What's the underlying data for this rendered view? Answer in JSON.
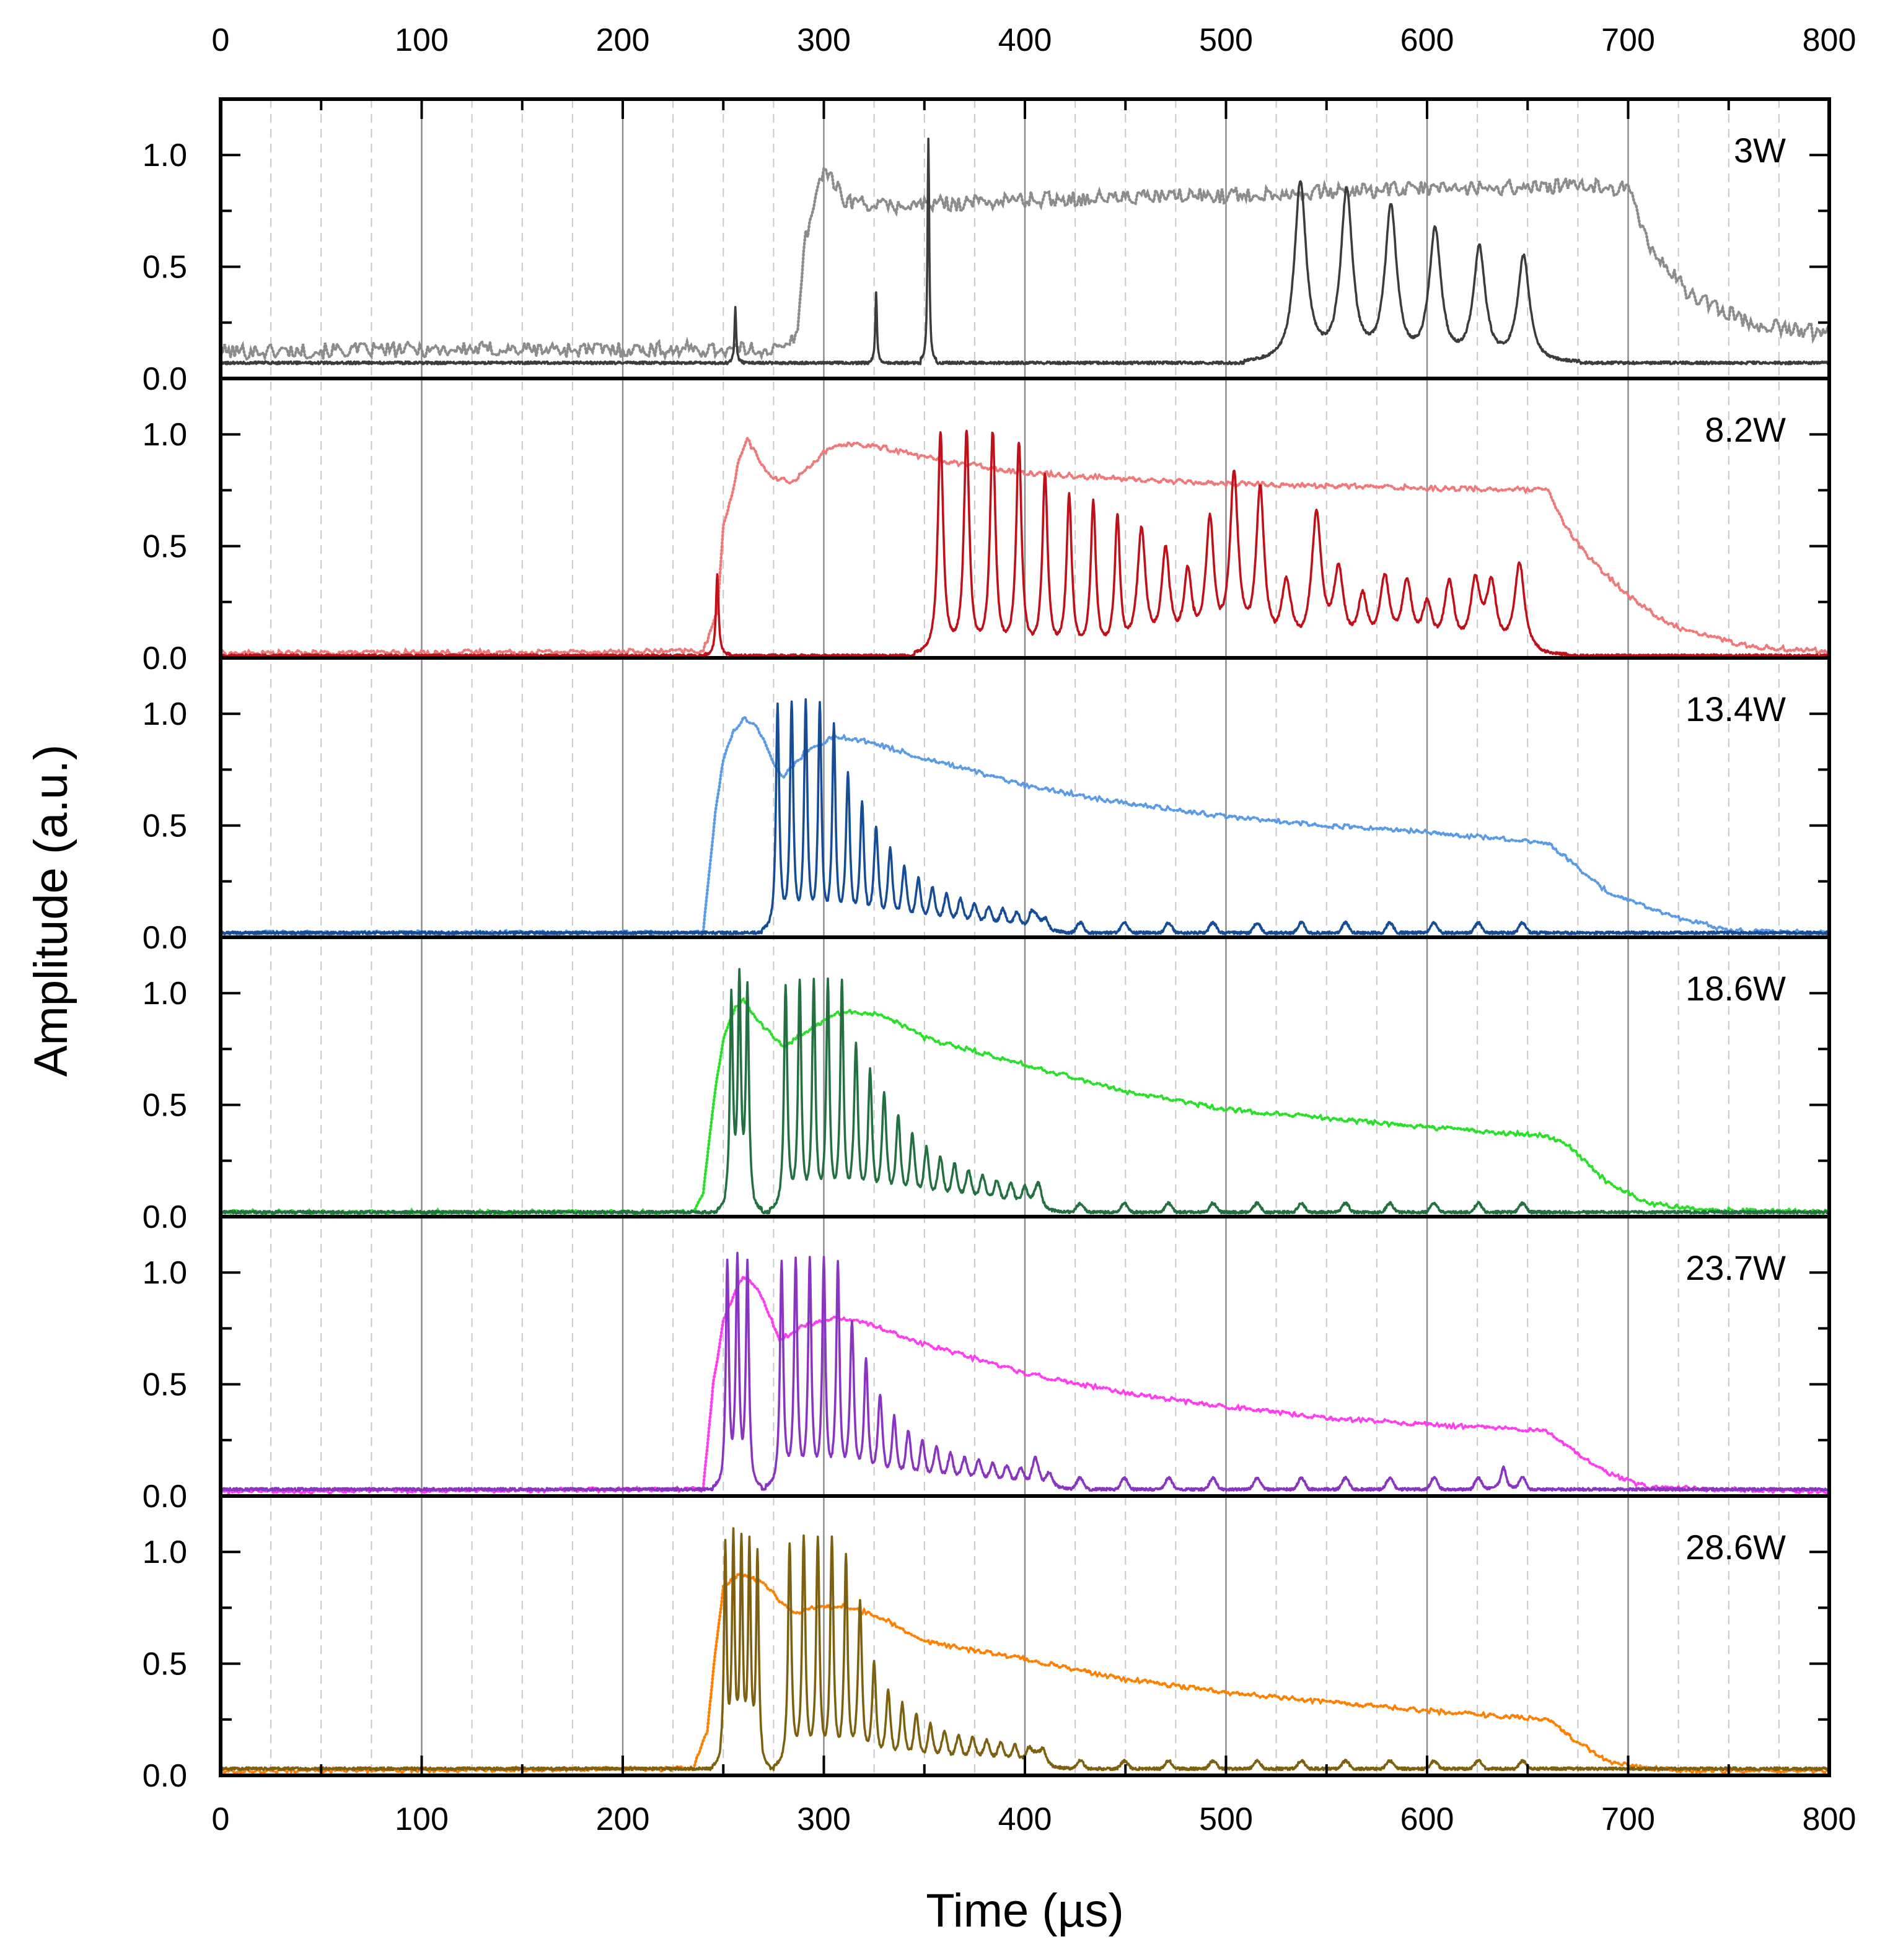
{
  "chart_data": {
    "type": "line",
    "xlabel": "Time (µs)",
    "ylabel": "Amplitude (a.u.)",
    "xlim": [
      0,
      800
    ],
    "ylim": [
      0,
      1.25
    ],
    "x_ticks": [
      "0",
      "100",
      "200",
      "300",
      "400",
      "500",
      "600",
      "700",
      "800"
    ],
    "y_ticks": [
      "0.0",
      "0.5",
      "1.0"
    ],
    "vertical_gridlines": {
      "major_every": 100,
      "minor_every": 25
    },
    "panels": [
      {
        "label": "3W",
        "envelope": {
          "name": "3W envelope (dotted)",
          "color": "#8c8c8c",
          "style": "dotted",
          "noise": 0.035,
          "x": [
            0,
            100,
            200,
            280,
            287,
            290,
            293,
            297,
            300,
            310,
            330,
            400,
            500,
            600,
            680,
            700,
            710,
            730,
            760,
            800
          ],
          "y": [
            0.12,
            0.13,
            0.13,
            0.13,
            0.2,
            0.6,
            0.7,
            0.85,
            0.95,
            0.8,
            0.77,
            0.8,
            0.82,
            0.85,
            0.86,
            0.85,
            0.6,
            0.38,
            0.25,
            0.2
          ]
        },
        "peaks": {
          "name": "3W pulses (solid)",
          "color": "#3c3c3c",
          "baseline": 0.07,
          "times": [
            256,
            326,
            352,
            537,
            560,
            582,
            604,
            626,
            648
          ],
          "heights": [
            0.25,
            0.31,
            1.0,
            0.8,
            0.75,
            0.68,
            0.58,
            0.5,
            0.47
          ],
          "widths": [
            0.5,
            0.5,
            0.5,
            3.5,
            3.5,
            3.5,
            3.5,
            3.5,
            3.5
          ]
        }
      },
      {
        "label": "8.2W",
        "envelope": {
          "name": "8.2W envelope (dotted)",
          "color": "#f07878",
          "style": "dotted",
          "noise": 0.012,
          "x": [
            0,
            240,
            247,
            250,
            255,
            258,
            262,
            268,
            275,
            285,
            300,
            312,
            330,
            360,
            400,
            450,
            500,
            600,
            660,
            668,
            680,
            700,
            720,
            760,
            800
          ],
          "y": [
            0.02,
            0.03,
            0.2,
            0.6,
            0.75,
            0.9,
            0.98,
            0.88,
            0.8,
            0.79,
            0.92,
            0.96,
            0.94,
            0.88,
            0.83,
            0.8,
            0.78,
            0.76,
            0.75,
            0.6,
            0.45,
            0.28,
            0.15,
            0.05,
            0.03
          ]
        },
        "peaks": {
          "name": "8.2W pulses (solid)",
          "color": "#c0101a",
          "baseline": 0.01,
          "times": [
            247,
            358,
            371,
            384,
            397,
            410,
            422,
            434,
            446,
            458,
            470,
            481,
            492,
            504,
            517,
            530,
            545,
            556,
            568,
            579,
            590,
            600,
            611,
            624,
            632,
            646
          ],
          "heights": [
            0.36,
            1.0,
            1.0,
            1.0,
            0.95,
            0.8,
            0.7,
            0.67,
            0.6,
            0.55,
            0.45,
            0.35,
            0.58,
            0.78,
            0.72,
            0.3,
            0.61,
            0.35,
            0.23,
            0.32,
            0.3,
            0.2,
            0.3,
            0.3,
            0.29,
            0.4
          ],
          "widths": [
            0.8,
            1.6,
            1.6,
            1.6,
            1.6,
            1.6,
            1.6,
            1.6,
            1.6,
            2.5,
            2.5,
            2.5,
            2.5,
            2.5,
            2.5,
            3,
            3,
            3,
            3,
            3,
            3,
            3,
            3,
            3,
            3,
            3
          ]
        }
      },
      {
        "label": "13.4W",
        "envelope": {
          "name": "13.4W envelope (dotted)",
          "color": "#5b9be6",
          "style": "dotted",
          "noise": 0.01,
          "x": [
            0,
            240,
            246,
            250,
            255,
            260,
            265,
            270,
            275,
            280,
            290,
            305,
            320,
            350,
            400,
            450,
            500,
            550,
            600,
            660,
            670,
            690,
            720,
            750,
            800
          ],
          "y": [
            0.02,
            0.02,
            0.55,
            0.8,
            0.92,
            0.98,
            0.96,
            0.88,
            0.78,
            0.72,
            0.82,
            0.9,
            0.88,
            0.8,
            0.68,
            0.6,
            0.54,
            0.5,
            0.47,
            0.42,
            0.35,
            0.2,
            0.1,
            0.03,
            0.02
          ]
        },
        "peaks": {
          "name": "13.4W pulses (solid)",
          "color": "#164d96",
          "baseline": 0.02,
          "times": [
            277,
            284,
            291,
            298,
            305,
            312,
            319,
            326,
            333,
            340,
            347,
            354,
            361,
            368,
            375,
            382,
            389,
            396,
            403,
            410
          ],
          "heights": [
            1.0,
            1.0,
            1.0,
            1.0,
            0.9,
            0.68,
            0.55,
            0.44,
            0.35,
            0.27,
            0.22,
            0.18,
            0.15,
            0.13,
            0.11,
            0.1,
            0.09,
            0.08,
            0.07,
            0.06
          ],
          "widths": [
            1.0,
            1.0,
            1.0,
            1.0,
            1.0,
            1.2,
            1.2,
            1.4,
            1.4,
            1.6,
            1.6,
            1.8,
            1.8,
            2,
            2,
            2,
            2,
            2,
            2,
            2
          ],
          "ripple": {
            "from": 400,
            "to": 655,
            "spacing": 11,
            "amplitude": 0.045
          }
        }
      },
      {
        "label": "18.6W",
        "envelope": {
          "name": "18.6W envelope (dotted)",
          "color": "#28e028",
          "style": "dotted",
          "noise": 0.01,
          "x": [
            0,
            235,
            240,
            245,
            250,
            255,
            260,
            265,
            270,
            280,
            295,
            310,
            330,
            350,
            400,
            450,
            500,
            550,
            600,
            660,
            670,
            690,
            710,
            740,
            800
          ],
          "y": [
            0.02,
            0.02,
            0.1,
            0.5,
            0.8,
            0.92,
            0.98,
            0.9,
            0.85,
            0.76,
            0.85,
            0.92,
            0.9,
            0.8,
            0.68,
            0.56,
            0.48,
            0.44,
            0.4,
            0.36,
            0.32,
            0.15,
            0.06,
            0.03,
            0.02
          ]
        },
        "peaks": {
          "name": "18.6W pulses (solid)",
          "color": "#237041",
          "baseline": 0.02,
          "times": [
            254,
            258,
            262,
            281,
            288,
            295,
            302,
            309,
            316,
            323,
            330,
            337,
            344,
            351,
            358,
            365,
            372,
            379,
            386,
            393,
            400,
            407
          ],
          "heights": [
            0.95,
            1.0,
            0.98,
            1.0,
            1.0,
            1.0,
            1.0,
            1.0,
            0.72,
            0.6,
            0.5,
            0.4,
            0.32,
            0.26,
            0.22,
            0.19,
            0.16,
            0.14,
            0.12,
            0.11,
            0.1,
            0.09
          ],
          "widths": [
            0.9,
            0.9,
            0.9,
            1.0,
            1.0,
            1.0,
            1.0,
            1.0,
            1.2,
            1.2,
            1.4,
            1.4,
            1.6,
            1.6,
            1.8,
            1.8,
            2,
            2,
            2,
            2,
            2,
            2
          ],
          "ripple": {
            "from": 400,
            "to": 655,
            "spacing": 11,
            "amplitude": 0.04
          }
        }
      },
      {
        "label": "23.7W",
        "envelope": {
          "name": "23.7W envelope (dotted)",
          "color": "#ff3df0",
          "style": "dotted",
          "noise": 0.01,
          "x": [
            0,
            240,
            245,
            250,
            255,
            260,
            265,
            270,
            278,
            290,
            305,
            320,
            350,
            400,
            450,
            500,
            550,
            600,
            660,
            670,
            690,
            710,
            740,
            800
          ],
          "y": [
            0.02,
            0.03,
            0.5,
            0.78,
            0.9,
            0.98,
            0.95,
            0.88,
            0.7,
            0.76,
            0.8,
            0.78,
            0.68,
            0.55,
            0.46,
            0.4,
            0.35,
            0.32,
            0.29,
            0.22,
            0.1,
            0.04,
            0.03,
            0.02
          ]
        },
        "peaks": {
          "name": "23.7W pulses (solid)",
          "color": "#8a35c2",
          "baseline": 0.03,
          "times": [
            252,
            257,
            262,
            279,
            286,
            293,
            300,
            307,
            314,
            321,
            328,
            335,
            342,
            349,
            356,
            363,
            370,
            377,
            384,
            391,
            398,
            405,
            412,
            638
          ],
          "heights": [
            1.0,
            1.0,
            1.0,
            1.0,
            1.0,
            1.0,
            1.0,
            0.98,
            0.72,
            0.55,
            0.4,
            0.3,
            0.24,
            0.2,
            0.17,
            0.14,
            0.12,
            0.11,
            0.1,
            0.09,
            0.08,
            0.08,
            0.07,
            0.1
          ],
          "widths": [
            0.9,
            0.9,
            0.9,
            1.0,
            1.0,
            1.0,
            1.0,
            1.0,
            1.2,
            1.2,
            1.4,
            1.4,
            1.6,
            1.6,
            1.8,
            1.8,
            2,
            2,
            2,
            2,
            2,
            2,
            2,
            1.5
          ],
          "ripple": {
            "from": 400,
            "to": 655,
            "spacing": 11,
            "amplitude": 0.05
          }
        }
      },
      {
        "label": "28.6W",
        "envelope": {
          "name": "28.6W envelope (dotted)",
          "color": "#ff7f00",
          "style": "dotted",
          "noise": 0.01,
          "x": [
            0,
            235,
            242,
            246,
            250,
            255,
            260,
            265,
            270,
            285,
            295,
            310,
            330,
            350,
            400,
            450,
            500,
            550,
            600,
            660,
            670,
            690,
            710,
            740,
            800
          ],
          "y": [
            0.02,
            0.03,
            0.2,
            0.55,
            0.84,
            0.88,
            0.9,
            0.88,
            0.86,
            0.72,
            0.75,
            0.76,
            0.7,
            0.6,
            0.52,
            0.43,
            0.37,
            0.33,
            0.29,
            0.25,
            0.18,
            0.06,
            0.03,
            0.02,
            0.02
          ]
        },
        "peaks": {
          "name": "28.6W pulses (solid)",
          "color": "#7d6110",
          "baseline": 0.03,
          "times": [
            251,
            255,
            259,
            263,
            267,
            283,
            290,
            297,
            304,
            311,
            318,
            325,
            332,
            339,
            346,
            353,
            360,
            367,
            374,
            381,
            388,
            395,
            402,
            409
          ],
          "heights": [
            0.98,
            1.0,
            0.98,
            0.96,
            0.95,
            0.99,
            1.0,
            1.0,
            1.0,
            0.92,
            0.72,
            0.45,
            0.33,
            0.27,
            0.22,
            0.18,
            0.15,
            0.13,
            0.12,
            0.11,
            0.1,
            0.09,
            0.08,
            0.08
          ],
          "widths": [
            0.8,
            0.8,
            0.8,
            0.8,
            0.8,
            1.0,
            1.0,
            1.0,
            1.0,
            1.0,
            1.2,
            1.2,
            1.4,
            1.4,
            1.6,
            1.6,
            1.8,
            1.8,
            2,
            2,
            2,
            2,
            2,
            2
          ],
          "ripple": {
            "from": 400,
            "to": 660,
            "spacing": 11,
            "amplitude": 0.035
          }
        }
      }
    ]
  }
}
